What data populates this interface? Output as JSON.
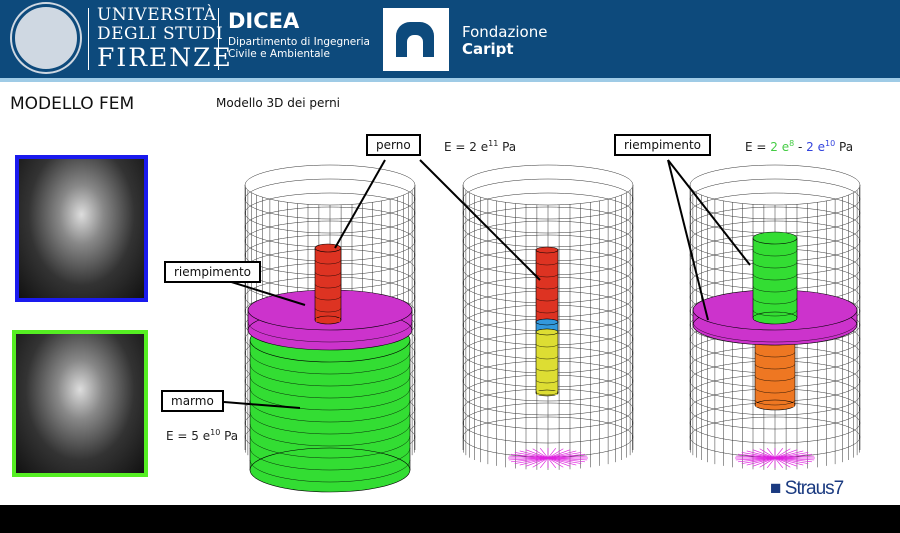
{
  "header": {
    "university": [
      "UNIVERSITÀ",
      "DEGLI STUDI",
      "FIRENZE"
    ],
    "dept_name": "DICEA",
    "dept_sub": [
      "Dipartimento di Ingegneria",
      "Civile e Ambientale"
    ],
    "foundation": [
      "Fondazione",
      "Caript"
    ]
  },
  "slide": {
    "title": "MODELLO FEM",
    "subtitle": "Modello 3D dei perni",
    "labels": {
      "perno": "perno",
      "riempimento_left": "riempimento",
      "riempimento_right": "riempimento",
      "marmo": "marmo"
    },
    "equations": {
      "perno": {
        "base": "E = 2 e",
        "exp": "11",
        "unit": " Pa"
      },
      "marmo": {
        "base": "E = 5 e",
        "exp": "10",
        "unit": " Pa"
      },
      "riempimento": {
        "prefix": "E = ",
        "low": "2 e",
        "low_exp": "8",
        "dash": " - ",
        "high": "2 e",
        "high_exp": "10",
        "unit": " Pa"
      }
    },
    "software_logo": "Straus7"
  },
  "colors": {
    "header": "#0d4a7c",
    "marble": "#33dd33",
    "filling": "#cc33cc",
    "pin": "#dd3322",
    "low_fill_text": "#44cc44",
    "high_fill_text": "#3344dd",
    "photo_frame_top": "#1a1aee",
    "photo_frame_bottom": "#55ee22"
  }
}
